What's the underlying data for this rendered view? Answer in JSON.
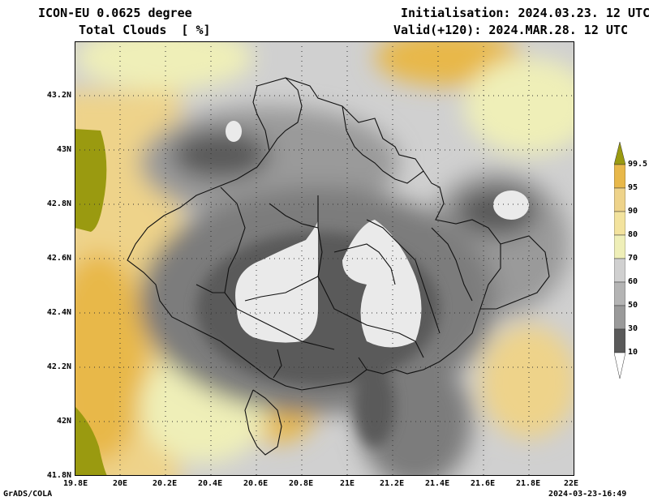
{
  "header": {
    "model": "ICON-EU 0.0625 degree",
    "variable": "Total Clouds  [ %]",
    "init": "Initialisation: 2024.03.23. 12 UTC",
    "valid": "Valid(+120): 2024.MAR.28. 12 UTC"
  },
  "footer": {
    "software": "GrADS/COLA",
    "timestamp": "2024-03-23-16:49"
  },
  "axes": {
    "x_ticks": [
      "19.8E",
      "20E",
      "20.2E",
      "20.4E",
      "20.6E",
      "20.8E",
      "21E",
      "21.2E",
      "21.4E",
      "21.6E",
      "21.8E",
      "22E"
    ],
    "y_ticks": [
      "43.2N",
      "43N",
      "42.8N",
      "42.6N",
      "42.4N",
      "42.2N",
      "42N",
      "41.8N"
    ],
    "lon_range": [
      19.8,
      22.0
    ],
    "lat_range": [
      41.8,
      43.4
    ]
  },
  "legend": {
    "labels": [
      "99.5",
      "95",
      "90",
      "80",
      "70",
      "60",
      "50",
      "30",
      "10"
    ],
    "colors": {
      "lt10": "#ffffff",
      "c10_30": "#5a5a5a",
      "c30_50": "#7c7c7c",
      "c50_60": "#9a9a9a",
      "c60_70": "#b4b4b4",
      "c70_80": "#d0d0d0",
      "c80_90": "#efefb8",
      "c90_95": "#eed38a",
      "c95_995": "#e8b84a",
      "gt995": "#9a9a10"
    }
  }
}
